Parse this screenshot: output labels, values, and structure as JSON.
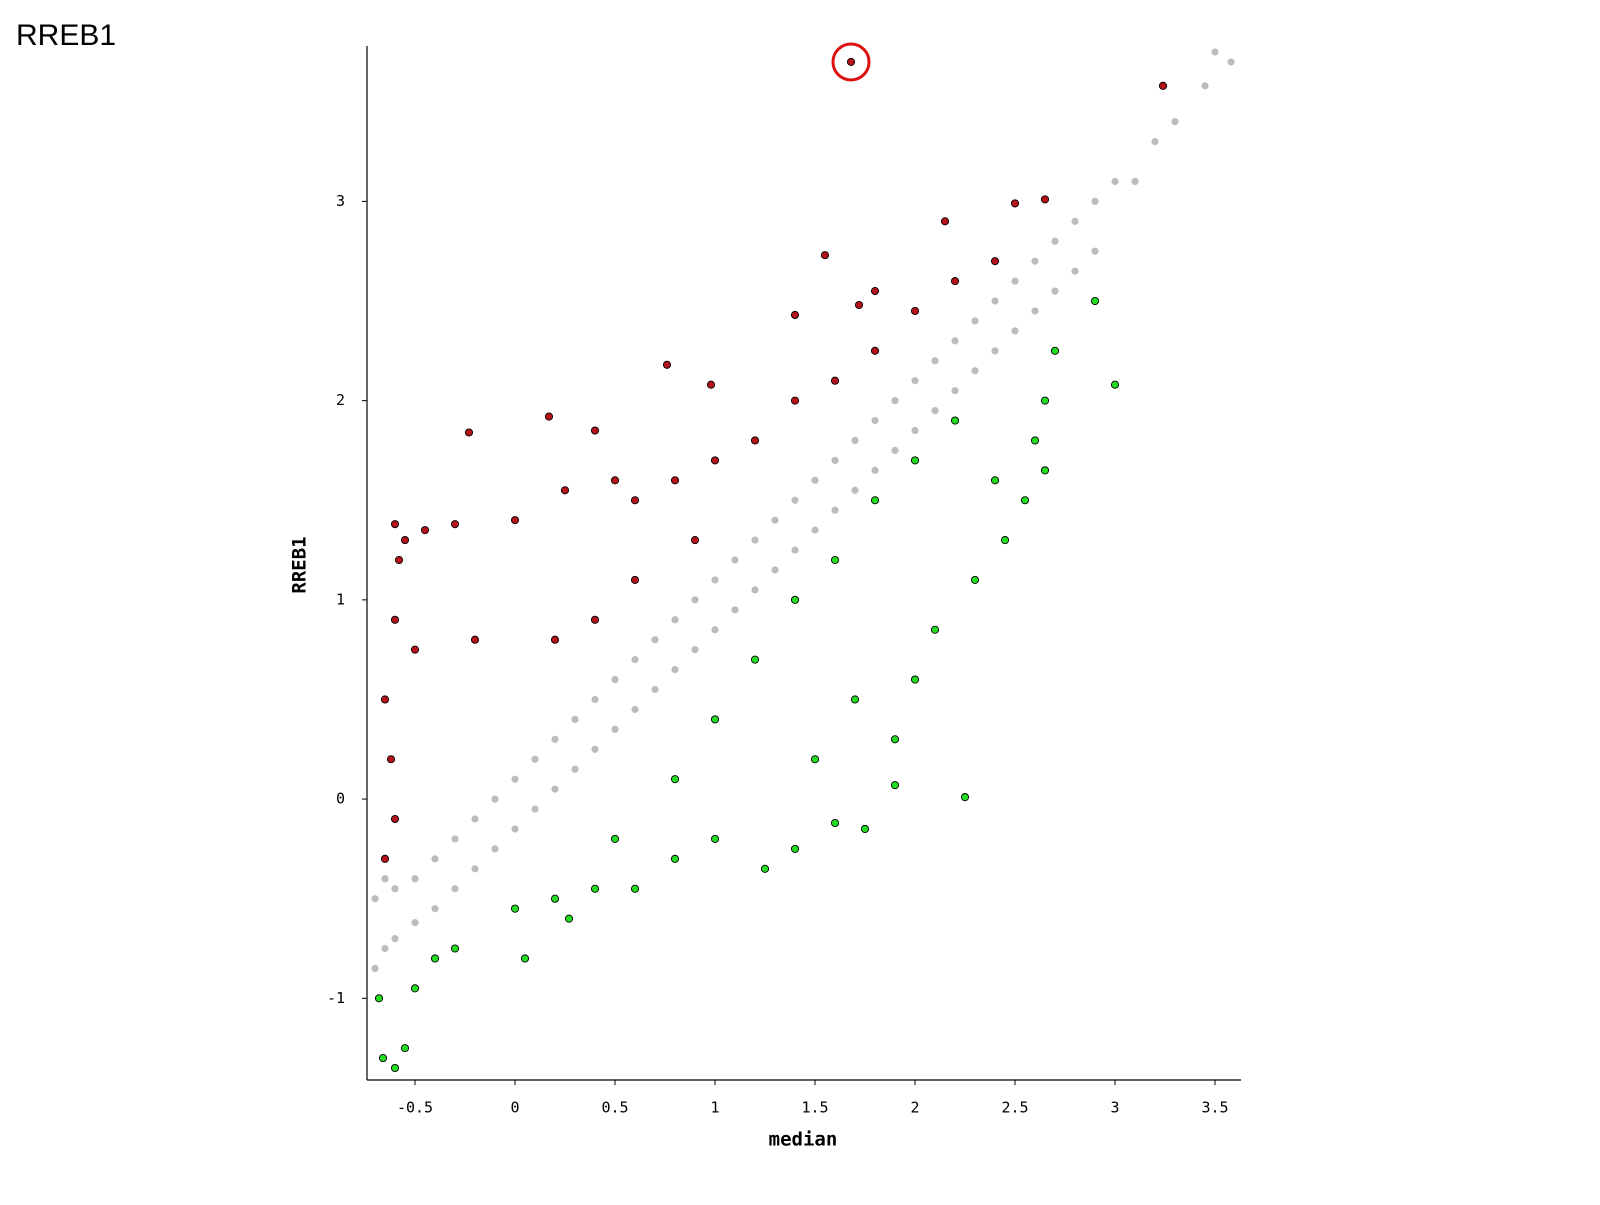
{
  "chart_data": {
    "type": "scatter",
    "title": "RREB1",
    "x_label": "median",
    "y_label": "RREB1",
    "xlim": [
      -0.74,
      3.63
    ],
    "ylim": [
      -1.41,
      3.78
    ],
    "xticks": [
      -0.5,
      0,
      0.5,
      1,
      1.5,
      2,
      2.5,
      3,
      3.5
    ],
    "yticks": [
      -1,
      0,
      1,
      2,
      3
    ],
    "grid": false,
    "series": [
      {
        "color": "#bcbcbc",
        "x": [
          -0.7,
          -0.7,
          -0.65,
          -0.65,
          -0.6,
          -0.6,
          -0.5,
          -0.5,
          -0.4,
          -0.4,
          -0.3,
          -0.3,
          -0.2,
          -0.2,
          -0.1,
          -0.1,
          0,
          0,
          0.1,
          0.1,
          0.2,
          0.2,
          0.3,
          0.3,
          0.4,
          0.4,
          0.5,
          0.5,
          0.6,
          0.6,
          0.7,
          0.7,
          0.8,
          0.8,
          0.9,
          0.9,
          1.0,
          1.0,
          1.1,
          1.1,
          1.2,
          1.2,
          1.3,
          1.3,
          1.4,
          1.4,
          1.5,
          1.5,
          1.6,
          1.6,
          1.7,
          1.7,
          1.8,
          1.8,
          1.9,
          1.9,
          2.0,
          2.0,
          2.1,
          2.1,
          2.2,
          2.2,
          2.3,
          2.3,
          2.4,
          2.4,
          2.5,
          2.5,
          2.6,
          2.6,
          2.7,
          2.7,
          2.8,
          2.8,
          2.9,
          2.9,
          3.0,
          3.1,
          3.2,
          3.3,
          3.45,
          3.5,
          3.58
        ],
        "y": [
          -0.5,
          -0.85,
          -0.4,
          -0.75,
          -0.45,
          -0.7,
          -0.4,
          -0.62,
          -0.3,
          -0.55,
          -0.2,
          -0.45,
          -0.1,
          -0.35,
          0.0,
          -0.25,
          0.1,
          -0.15,
          0.2,
          -0.05,
          0.3,
          0.05,
          0.4,
          0.15,
          0.5,
          0.25,
          0.6,
          0.35,
          0.7,
          0.45,
          0.8,
          0.55,
          0.9,
          0.65,
          1.0,
          0.75,
          1.1,
          0.85,
          1.2,
          0.95,
          1.3,
          1.05,
          1.4,
          1.15,
          1.5,
          1.25,
          1.6,
          1.35,
          1.7,
          1.45,
          1.8,
          1.55,
          1.9,
          1.65,
          2.0,
          1.75,
          2.1,
          1.85,
          2.2,
          1.95,
          2.3,
          2.05,
          2.4,
          2.15,
          2.5,
          2.25,
          2.6,
          2.35,
          2.7,
          2.45,
          2.8,
          2.55,
          2.9,
          2.65,
          3.0,
          2.75,
          3.1,
          3.1,
          3.3,
          3.4,
          3.58,
          3.75,
          3.7
        ]
      },
      {
        "color": "#b5121b",
        "x": [
          -0.6,
          -0.55,
          -0.58,
          -0.45,
          -0.3,
          -0.23,
          0.17,
          0.4,
          0.76,
          0.98,
          1.4,
          1.55,
          1.72,
          1.8,
          2.15,
          2.5,
          2.65,
          3.24,
          1.68,
          -0.6,
          -0.5,
          -0.2,
          0,
          0.25,
          0.5,
          0.6,
          0.8,
          1.0,
          1.2,
          1.4,
          1.6,
          1.8,
          2.0,
          2.2,
          2.4,
          -0.65,
          -0.62,
          -0.6,
          -0.65,
          0.2,
          0.4,
          0.6,
          0.9
        ],
        "y": [
          1.38,
          1.3,
          1.2,
          1.35,
          1.38,
          1.84,
          1.92,
          1.85,
          2.18,
          2.08,
          2.43,
          2.73,
          2.48,
          2.55,
          2.9,
          2.99,
          3.01,
          3.58,
          3.7,
          0.9,
          0.75,
          0.8,
          1.4,
          1.55,
          1.6,
          1.5,
          1.6,
          1.7,
          1.8,
          2.0,
          2.1,
          2.25,
          2.45,
          2.6,
          2.7,
          0.5,
          0.2,
          -0.1,
          -0.3,
          0.8,
          0.9,
          1.1,
          1.3
        ]
      },
      {
        "color": "#22dd22",
        "x": [
          -0.68,
          -0.66,
          -0.6,
          -0.55,
          -0.5,
          -0.4,
          -0.3,
          0.05,
          0.27,
          0.4,
          0.6,
          0.8,
          1.0,
          1.25,
          1.4,
          1.6,
          1.75,
          1.9,
          2.25,
          1.5,
          1.7,
          1.9,
          2.0,
          2.1,
          2.3,
          2.45,
          2.55,
          2.65,
          2.65,
          3.0,
          2.9,
          2.7,
          2.6,
          2.4,
          0.5,
          0.8,
          1.0,
          1.2,
          1.4,
          1.6,
          1.8,
          2.0,
          2.2,
          0.2,
          0
        ],
        "y": [
          -1.0,
          -1.3,
          -1.35,
          -1.25,
          -0.95,
          -0.8,
          -0.75,
          -0.8,
          -0.6,
          -0.45,
          -0.45,
          -0.3,
          -0.2,
          -0.35,
          -0.25,
          -0.12,
          -0.15,
          0.07,
          0.01,
          0.2,
          0.5,
          0.3,
          0.6,
          0.85,
          1.1,
          1.3,
          1.5,
          1.65,
          2.0,
          2.08,
          2.5,
          2.25,
          1.8,
          1.6,
          -0.2,
          0.1,
          0.4,
          0.7,
          1.0,
          1.2,
          1.5,
          1.7,
          1.9,
          -0.5,
          -0.55
        ]
      }
    ],
    "annotations": [
      {
        "shape": "circle",
        "x": 1.68,
        "y": 3.7,
        "color": "#dd1111"
      }
    ]
  }
}
